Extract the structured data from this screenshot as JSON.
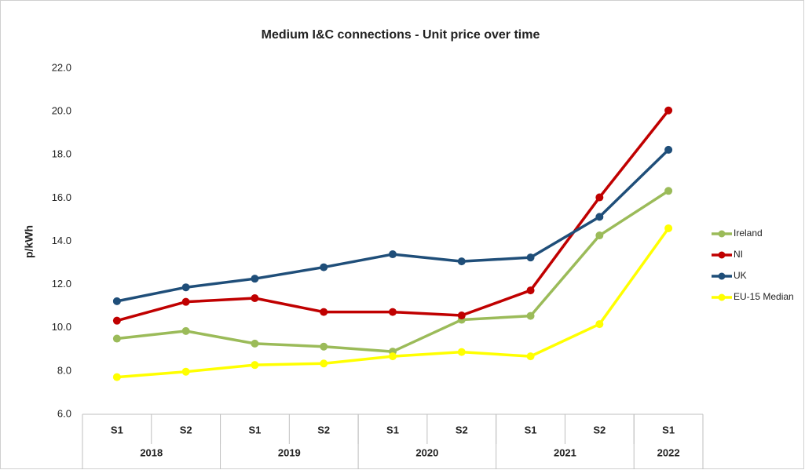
{
  "chart_data": {
    "type": "line",
    "title": "Medium I&C connections - Unit price over time",
    "y_label": "p/kWh",
    "categories": [
      "S1",
      "S2",
      "S1",
      "S2",
      "S1",
      "S2",
      "S1",
      "S2",
      "S1"
    ],
    "category_groups": [
      {
        "name": "2018",
        "size": 2
      },
      {
        "name": "2019",
        "size": 2
      },
      {
        "name": "2020",
        "size": 2
      },
      {
        "name": "2021",
        "size": 2
      },
      {
        "name": "2022",
        "size": 1
      }
    ],
    "series": [
      {
        "name": "Ireland",
        "color": "#9bbb59",
        "values": [
          9.5,
          9.85,
          9.27,
          9.13,
          8.9,
          10.37,
          10.55,
          14.27,
          16.33
        ]
      },
      {
        "name": "NI",
        "color": "#c00000",
        "values": [
          10.33,
          11.2,
          11.37,
          10.73,
          10.73,
          10.57,
          11.73,
          16.03,
          20.05
        ]
      },
      {
        "name": "UK",
        "color": "#1f4e79",
        "values": [
          11.23,
          11.87,
          12.27,
          12.8,
          13.4,
          13.07,
          13.25,
          15.13,
          18.23
        ]
      },
      {
        "name": "EU-15 Median",
        "color": "#ffff00",
        "values": [
          7.72,
          7.97,
          8.28,
          8.35,
          8.68,
          8.88,
          8.68,
          10.17,
          14.6
        ]
      }
    ],
    "ylim": [
      6,
      22
    ],
    "yticks": [
      {
        "value": 6,
        "label": "6.0"
      },
      {
        "value": 8,
        "label": "8.0"
      },
      {
        "value": 10,
        "label": "10.0"
      },
      {
        "value": 12,
        "label": "12.0"
      },
      {
        "value": 14,
        "label": "14.0"
      },
      {
        "value": 16,
        "label": "16.0"
      },
      {
        "value": 18,
        "label": "18.0"
      },
      {
        "value": 20,
        "label": "20.0"
      },
      {
        "value": 22,
        "label": "22.0"
      }
    ],
    "grid": false,
    "legend": "right"
  }
}
